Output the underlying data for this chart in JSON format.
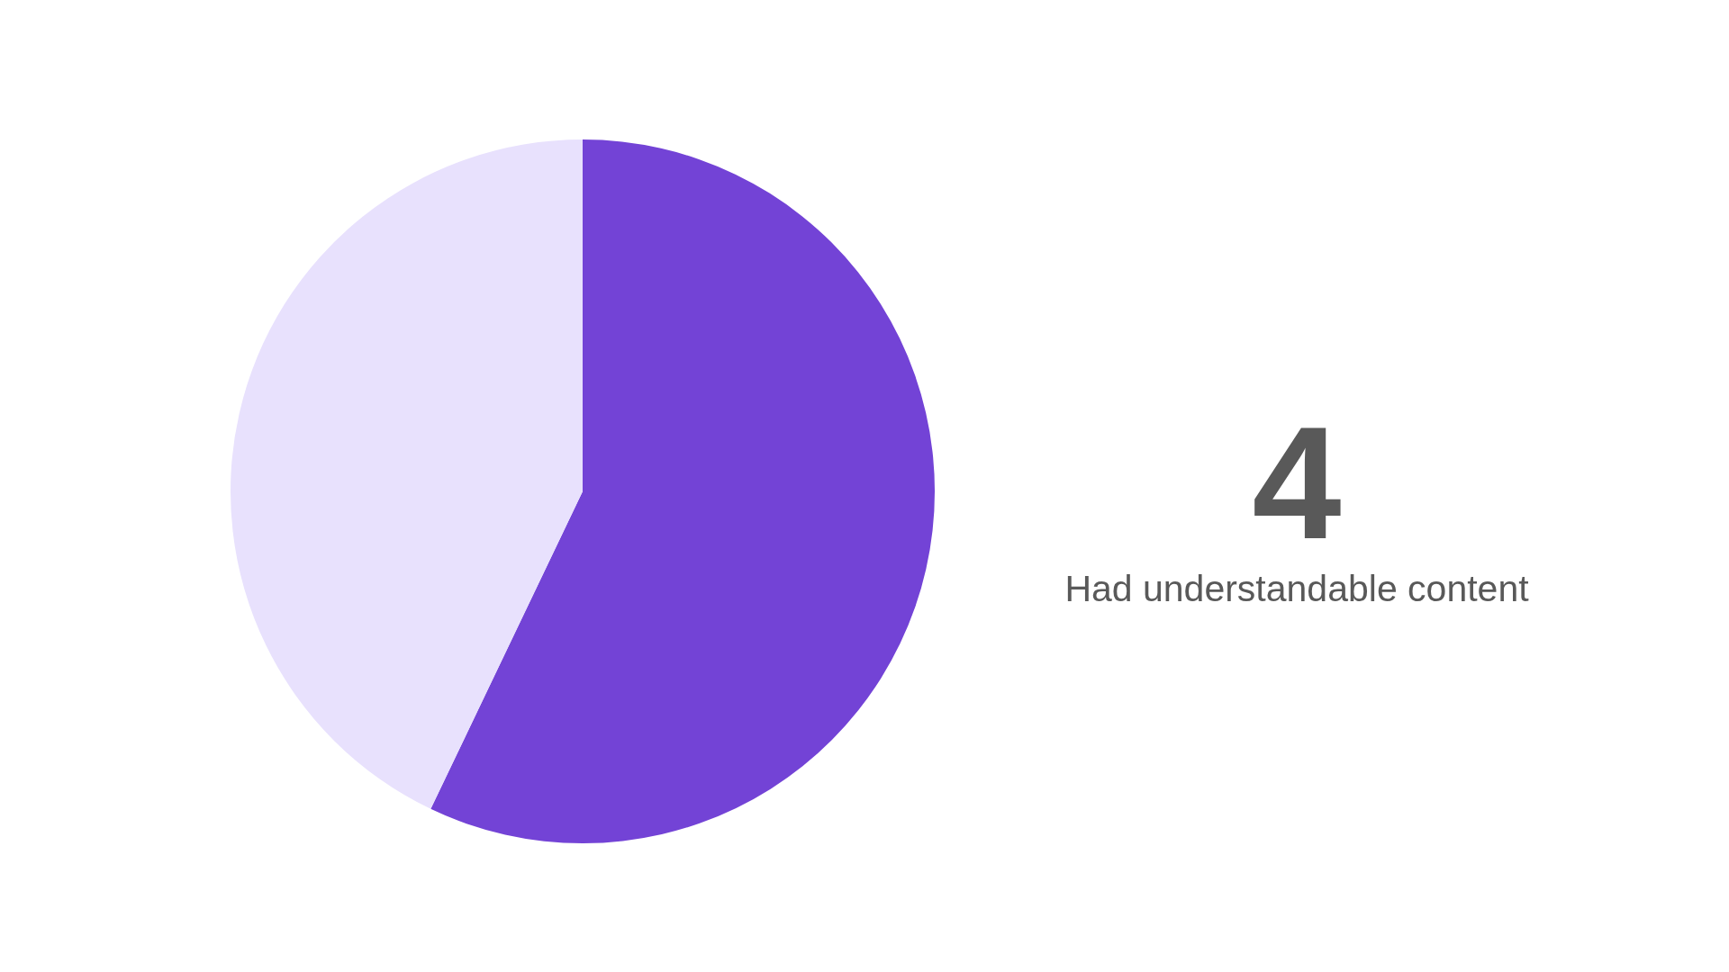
{
  "chart_data": {
    "type": "pie",
    "title": "4",
    "subtitle": "Had understandable content",
    "categories": [
      null,
      null
    ],
    "values": [
      57.1,
      42.9
    ],
    "colors": [
      "#7343d6",
      "#e8e1fd"
    ]
  }
}
